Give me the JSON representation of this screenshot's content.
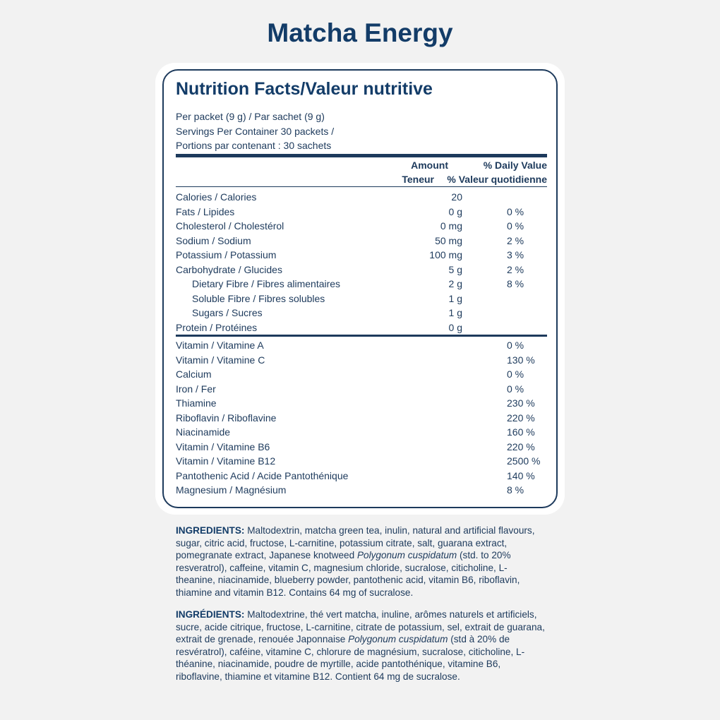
{
  "title": "Matcha Energy",
  "label": {
    "heading": "Nutrition Facts/Valeur nutritive",
    "serving": [
      "Per packet (9 g) / Par sachet (9 g)",
      "Servings Per Container 30 packets /",
      "Portions par contenant : 30 sachets"
    ],
    "columns": {
      "amount": "Amount",
      "daily_value": "% Daily Value",
      "amount_fr": "Teneur",
      "daily_value_fr": "% Valeur quotidienne"
    },
    "nutrients": [
      {
        "name": "Calories / Calories",
        "amount": "20"
      },
      {
        "name": "Fats / Lipides",
        "amount": "0 g",
        "dv": "0 %"
      },
      {
        "name": "Cholesterol / Cholestérol",
        "amount": "0 mg",
        "dv": "0 %"
      },
      {
        "name": "Sodium / Sodium",
        "amount": "50 mg",
        "dv": "2 %"
      },
      {
        "name": "Potassium / Potassium",
        "amount": "100 mg",
        "dv": "3 %"
      },
      {
        "name": "Carbohydrate / Glucides",
        "amount": "5 g",
        "dv": "2 %",
        "sub": [
          {
            "name": "Dietary Fibre / Fibres alimentaires",
            "amount": "2 g",
            "dv": "8 %"
          },
          {
            "name": "Soluble Fibre / Fibres solubles",
            "amount": "1 g"
          },
          {
            "name": "Sugars / Sucres",
            "amount": "1 g"
          }
        ]
      },
      {
        "name": "Protein / Protéines",
        "amount": "0 g"
      }
    ],
    "vitamins": [
      {
        "name": "Vitamin / Vitamine A",
        "dv": "0 %"
      },
      {
        "name": "Vitamin / Vitamine C",
        "dv": "130 %"
      },
      {
        "name": "Calcium",
        "dv": "0 %"
      },
      {
        "name": "Iron / Fer",
        "dv": "0 %"
      },
      {
        "name": "Thiamine",
        "dv": "230 %"
      },
      {
        "name": "Riboflavin / Riboflavine",
        "dv": "220 %"
      },
      {
        "name": "Niacinamide",
        "dv": "160 %"
      },
      {
        "name": "Vitamin / Vitamine B6",
        "dv": "220 %"
      },
      {
        "name": "Vitamin / Vitamine B12",
        "dv": "2500 %"
      },
      {
        "name": "Pantothenic Acid / Acide Pantothénique",
        "dv": "140 %"
      },
      {
        "name": "Magnesium / Magnésium",
        "dv": "8 %"
      }
    ]
  },
  "ingredients": [
    {
      "label": "INGREDIENTS:",
      "before": " Maltodextrin, matcha green tea, inulin, natural and artificial flavours, sugar, citric acid, fructose, L-carnitine, potassium citrate, salt, guarana extract, pomegranate extract, Japanese knotweed ",
      "italic": "Polygonum cuspidatum",
      "after": " (std. to 20% resveratrol), caffeine, vitamin C, magnesium chloride, sucralose, citicholine, L-theanine, niacinamide, blueberry powder, pantothenic acid, vitamin B6, riboflavin, thiamine and vitamin B12. Contains 64 mg of sucralose."
    },
    {
      "label": "INGRÉDIENTS:",
      "before": " Maltodextrine, thé vert matcha, inuline, arômes naturels et artificiels, sucre, acide citrique, fructose, L-carnitine, citrate de potassium, sel, extrait de guarana, extrait de grenade, renouée Japonnaise ",
      "italic": "Polygonum cuspidatum",
      "after": " (std à 20% de resvératrol), caféine, vitamine C, chlorure de magnésium, sucralose, citicholine, L-théanine, niacinamide, poudre de myrtille, acide pantothénique, vitamine B6, riboflavine, thiamine et vitamine B12. Contient 64 mg de sucralose."
    }
  ]
}
